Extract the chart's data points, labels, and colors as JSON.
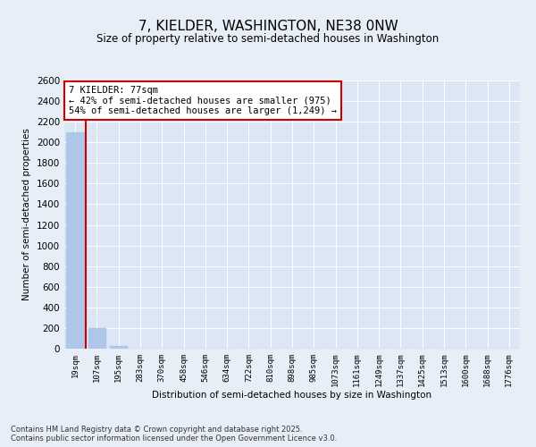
{
  "title": "7, KIELDER, WASHINGTON, NE38 0NW",
  "subtitle": "Size of property relative to semi-detached houses in Washington",
  "xlabel": "Distribution of semi-detached houses by size in Washington",
  "ylabel": "Number of semi-detached properties",
  "categories": [
    "19sqm",
    "107sqm",
    "195sqm",
    "283sqm",
    "370sqm",
    "458sqm",
    "546sqm",
    "634sqm",
    "722sqm",
    "810sqm",
    "898sqm",
    "985sqm",
    "1073sqm",
    "1161sqm",
    "1249sqm",
    "1337sqm",
    "1425sqm",
    "1513sqm",
    "1600sqm",
    "1688sqm",
    "1776sqm"
  ],
  "values": [
    2100,
    200,
    30,
    0,
    0,
    0,
    0,
    0,
    0,
    0,
    0,
    0,
    0,
    0,
    0,
    0,
    0,
    0,
    0,
    0,
    0
  ],
  "bar_color": "#aec6e8",
  "vline_color": "#cc0000",
  "vline_x": 0.5,
  "ylim": [
    0,
    2600
  ],
  "yticks": [
    0,
    200,
    400,
    600,
    800,
    1000,
    1200,
    1400,
    1600,
    1800,
    2000,
    2200,
    2400,
    2600
  ],
  "annotation_title": "7 KIELDER: 77sqm",
  "annotation_line1": "← 42% of semi-detached houses are smaller (975)",
  "annotation_line2": "54% of semi-detached houses are larger (1,249) →",
  "annotation_box_color": "#cc0000",
  "footer1": "Contains HM Land Registry data © Crown copyright and database right 2025.",
  "footer2": "Contains public sector information licensed under the Open Government Licence v3.0.",
  "bg_color": "#e8eef7",
  "plot_bg_color": "#dce6f5"
}
